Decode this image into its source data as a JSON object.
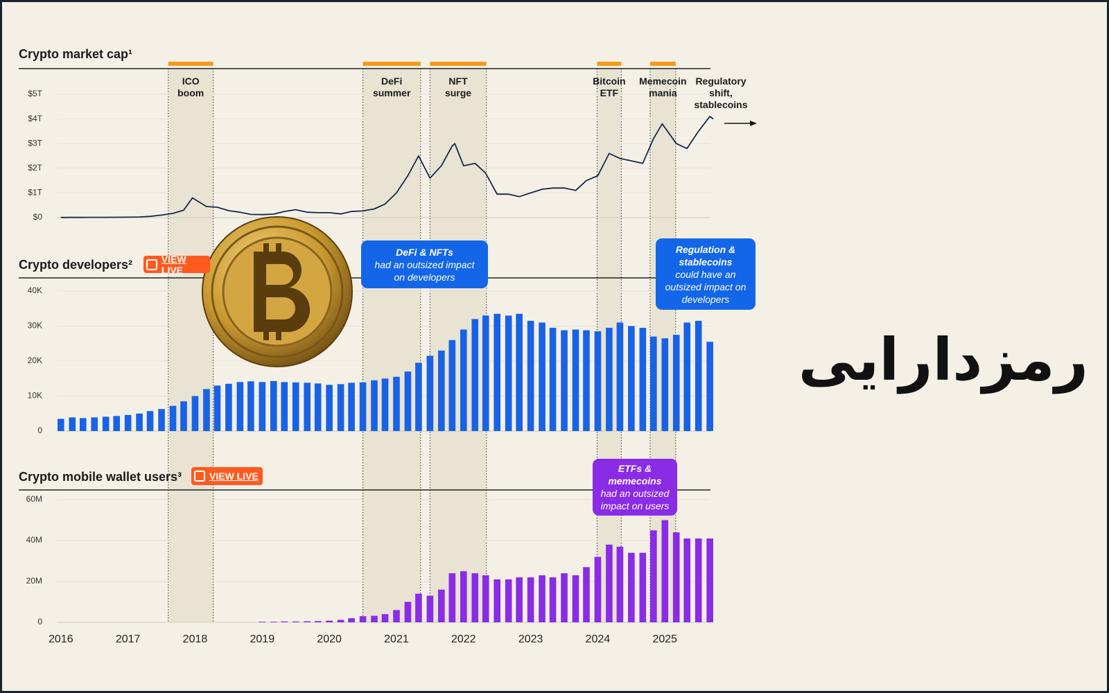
{
  "caption": "رمزدارایی",
  "chart_data": [
    {
      "type": "line",
      "title": "Crypto market cap¹",
      "color": "#15284a",
      "grid": true,
      "xlim": [
        2015.94,
        2025.72
      ],
      "ylim": [
        0,
        5
      ],
      "yticks": [
        {
          "value": 0,
          "label": "$0"
        },
        {
          "value": 1,
          "label": "$1T"
        },
        {
          "value": 2,
          "label": "$2T"
        },
        {
          "value": 3,
          "label": "$3T"
        },
        {
          "value": 4,
          "label": "$4T"
        },
        {
          "value": 5,
          "label": "$5T"
        }
      ],
      "x": [
        2016,
        2016.17,
        2016.33,
        2016.5,
        2016.67,
        2016.83,
        2017,
        2017.17,
        2017.33,
        2017.5,
        2017.67,
        2017.83,
        2017.96,
        2018.17,
        2018.33,
        2018.5,
        2018.67,
        2018.83,
        2019,
        2019.17,
        2019.33,
        2019.5,
        2019.67,
        2019.83,
        2020,
        2020.17,
        2020.33,
        2020.5,
        2020.67,
        2020.83,
        2021,
        2021.17,
        2021.33,
        2021.5,
        2021.67,
        2021.83,
        2021.87,
        2022,
        2022.17,
        2022.33,
        2022.5,
        2022.67,
        2022.83,
        2023,
        2023.17,
        2023.33,
        2023.5,
        2023.67,
        2023.83,
        2024,
        2024.17,
        2024.33,
        2024.5,
        2024.67,
        2024.83,
        2024.96,
        2025.17,
        2025.33,
        2025.5,
        2025.67,
        2025.72
      ],
      "values": [
        0.007,
        0.008,
        0.009,
        0.011,
        0.012,
        0.014,
        0.018,
        0.025,
        0.05,
        0.1,
        0.17,
        0.3,
        0.8,
        0.45,
        0.42,
        0.28,
        0.22,
        0.13,
        0.12,
        0.14,
        0.25,
        0.32,
        0.22,
        0.2,
        0.2,
        0.15,
        0.25,
        0.27,
        0.35,
        0.55,
        1.0,
        1.7,
        2.5,
        1.6,
        2.1,
        2.9,
        3.0,
        2.1,
        2.2,
        1.8,
        0.95,
        0.95,
        0.85,
        1.0,
        1.15,
        1.2,
        1.2,
        1.1,
        1.5,
        1.7,
        2.6,
        2.4,
        2.3,
        2.2,
        3.2,
        3.8,
        3.0,
        2.8,
        3.5,
        4.1,
        4.0
      ],
      "periods": [
        {
          "start": 2017.6,
          "end": 2018.27,
          "label": [
            "ICO",
            "boom"
          ]
        },
        {
          "start": 2020.5,
          "end": 2021.36,
          "label": [
            "DeFi",
            "summer"
          ]
        },
        {
          "start": 2021.5,
          "end": 2022.34,
          "label": [
            "NFT",
            "surge"
          ]
        },
        {
          "start": 2023.99,
          "end": 2024.35,
          "label": [
            "Bitcoin",
            "ETF"
          ]
        },
        {
          "start": 2024.78,
          "end": 2025.16,
          "label": [
            "Memecoin",
            "mania"
          ]
        }
      ],
      "annotation": [
        "Regulatory",
        "shift,",
        "stablecoins"
      ]
    },
    {
      "type": "bar",
      "title": "Crypto developers²",
      "link": "VIEW LIVE",
      "color": "#1862e6",
      "grid": true,
      "xlim": [
        2015.94,
        2025.72
      ],
      "ylim": [
        0,
        40000
      ],
      "yticks": [
        0,
        {
          "value": 10000,
          "label": "10K"
        },
        {
          "value": 20000,
          "label": "20K"
        },
        {
          "value": 30000,
          "label": "30K"
        },
        {
          "value": 40000,
          "label": "40K"
        }
      ],
      "x": [
        2016,
        2016.17,
        2016.33,
        2016.5,
        2016.67,
        2016.83,
        2017,
        2017.17,
        2017.33,
        2017.5,
        2017.67,
        2017.83,
        2018,
        2018.17,
        2018.33,
        2018.5,
        2018.67,
        2018.83,
        2019,
        2019.17,
        2019.33,
        2019.5,
        2019.67,
        2019.83,
        2020,
        2020.17,
        2020.33,
        2020.5,
        2020.67,
        2020.83,
        2021,
        2021.17,
        2021.33,
        2021.5,
        2021.67,
        2021.83,
        2022,
        2022.17,
        2022.33,
        2022.5,
        2022.67,
        2022.83,
        2023,
        2023.17,
        2023.33,
        2023.5,
        2023.67,
        2023.83,
        2024,
        2024.17,
        2024.33,
        2024.5,
        2024.67,
        2024.83,
        2025,
        2025.17,
        2025.33,
        2025.5,
        2025.67
      ],
      "values": [
        3500,
        3900,
        3700,
        3900,
        4100,
        4300,
        4600,
        5000,
        5700,
        6300,
        7200,
        8500,
        10000,
        12000,
        13000,
        13500,
        14000,
        14200,
        14000,
        14300,
        14000,
        13900,
        13800,
        13600,
        13200,
        13400,
        13800,
        13900,
        14500,
        15000,
        15500,
        17000,
        19500,
        21500,
        23000,
        26000,
        29000,
        32000,
        33000,
        33500,
        33000,
        33500,
        31500,
        31000,
        29500,
        28800,
        29000,
        28800,
        28500,
        29500,
        31000,
        30000,
        29500,
        27000,
        26500,
        27500,
        31000,
        31500,
        25500
      ],
      "callouts": [
        {
          "bold": "DeFi & NFTs",
          "text": "had an outsized impact on developers"
        },
        {
          "bold": "Regulation & stablecoins",
          "text": "could have an outsized impact on developers"
        }
      ]
    },
    {
      "type": "bar",
      "title": "Crypto mobile wallet users³",
      "link": "VIEW LIVE",
      "color": "#8a2be6",
      "grid": true,
      "xlim": [
        2015.94,
        2025.72
      ],
      "ylim": [
        0,
        60000000
      ],
      "yticks": [
        0,
        {
          "value": 20000000,
          "label": "20M"
        },
        {
          "value": 40000000,
          "label": "40M"
        },
        {
          "value": 60000000,
          "label": "60M"
        }
      ],
      "xticks": [
        2016,
        2017,
        2018,
        2019,
        2020,
        2021,
        2022,
        2023,
        2024,
        2025
      ],
      "x": [
        2019,
        2019.17,
        2019.33,
        2019.5,
        2019.67,
        2019.83,
        2020,
        2020.17,
        2020.33,
        2020.5,
        2020.67,
        2020.83,
        2021,
        2021.17,
        2021.33,
        2021.5,
        2021.67,
        2021.83,
        2022,
        2022.17,
        2022.33,
        2022.5,
        2022.67,
        2022.83,
        2023,
        2023.17,
        2023.33,
        2023.5,
        2023.67,
        2023.83,
        2024,
        2024.17,
        2024.33,
        2024.5,
        2024.67,
        2024.83,
        2025,
        2025.17,
        2025.33,
        2025.5,
        2025.67
      ],
      "values": [
        300000,
        300000,
        400000,
        400000,
        500000,
        600000,
        800000,
        1200000,
        2000000,
        3000000,
        3200000,
        4000000,
        6000000,
        10000000,
        14000000,
        13000000,
        16000000,
        24000000,
        25000000,
        24000000,
        23000000,
        21000000,
        21000000,
        22000000,
        22000000,
        23000000,
        22000000,
        24000000,
        23000000,
        27000000,
        32000000,
        38000000,
        37000000,
        34000000,
        34000000,
        45000000,
        50000000,
        44000000,
        41000000,
        41000000,
        41000000
      ],
      "callouts": [
        {
          "bold": "ETFs & memecoins",
          "text": "had an outsized impact on users"
        }
      ]
    }
  ]
}
